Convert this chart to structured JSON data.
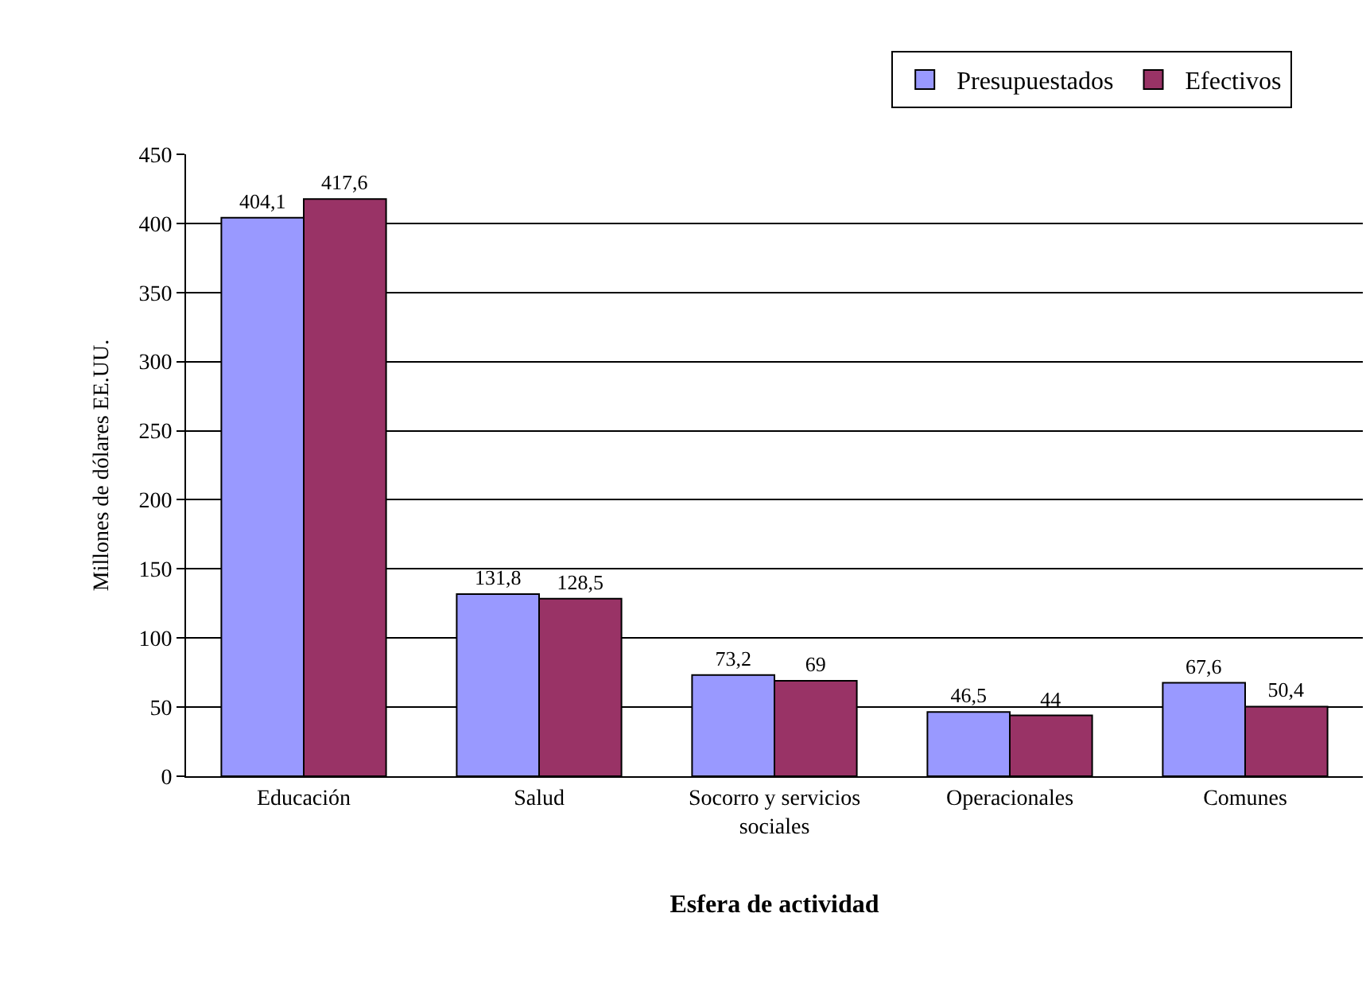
{
  "chart_data": {
    "type": "bar",
    "xlabel": "Esfera de actividad",
    "ylabel": "Millones de dólares EE.UU.",
    "categories": [
      "Educación",
      "Salud",
      "Socorro y servicios sociales",
      "Operacionales",
      "Comunes"
    ],
    "series": [
      {
        "name": "Presupuestados",
        "color": "#9999ff",
        "values": [
          404.1,
          131.8,
          73.2,
          46.5,
          67.6
        ],
        "value_labels": [
          "404,1",
          "131,8",
          "73,2",
          "46,5",
          "67,6"
        ]
      },
      {
        "name": "Efectivos",
        "color": "#993366",
        "values": [
          417.6,
          128.5,
          69,
          44,
          50.4
        ],
        "value_labels": [
          "417,6",
          "128,5",
          "69",
          "44",
          "50,4"
        ]
      }
    ],
    "ylim": [
      0,
      450
    ],
    "yticks": [
      0,
      50,
      100,
      150,
      200,
      250,
      300,
      350,
      400,
      450
    ],
    "grid": "y",
    "legend": "top right"
  }
}
